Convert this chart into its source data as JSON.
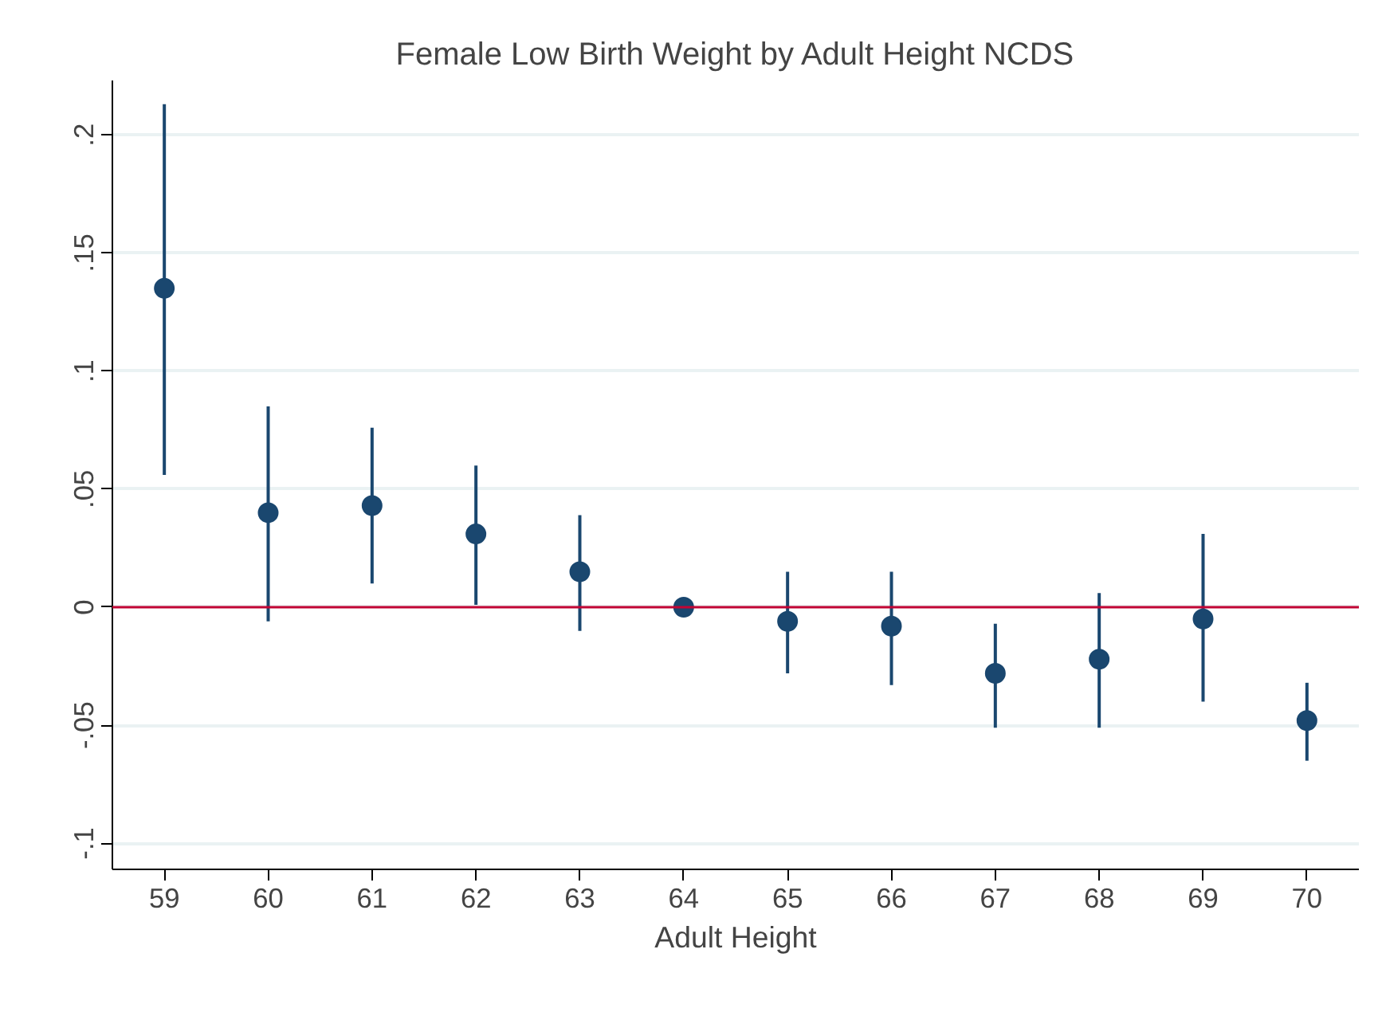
{
  "chart_data": {
    "type": "scatter",
    "title": "Female Low Birth Weight by Adult Height NCDS",
    "xlabel": "Adult Height",
    "x": [
      59,
      60,
      61,
      62,
      63,
      64,
      65,
      66,
      67,
      68,
      69,
      70
    ],
    "series": [
      {
        "color": "#1a476f",
        "values": [
          0.135,
          0.04,
          0.043,
          0.031,
          0.015,
          0,
          -0.006,
          -0.008,
          -0.028,
          -0.022,
          -0.005,
          -0.048
        ],
        "errors": [
          [
            0.056,
            0.213
          ],
          [
            -0.006,
            0.085
          ],
          [
            0.01,
            0.076
          ],
          [
            0.001,
            0.06
          ],
          [
            -0.01,
            0.039
          ],
          null,
          [
            -0.028,
            0.015
          ],
          [
            -0.033,
            0.015
          ],
          [
            -0.051,
            -0.007
          ],
          [
            -0.051,
            0.006
          ],
          [
            -0.04,
            0.031
          ],
          [
            -0.065,
            -0.032
          ]
        ]
      }
    ],
    "xlim": [
      58.5,
      70.5
    ],
    "ylim": [
      -0.111,
      0.223
    ],
    "xticks": [
      59,
      60,
      61,
      62,
      63,
      64,
      65,
      66,
      67,
      68,
      69,
      70
    ],
    "yticks": [
      {
        "value": -0.1,
        "label": "-.1"
      },
      {
        "value": -0.05,
        "label": "-.05"
      },
      {
        "value": 0,
        "label": "0"
      },
      {
        "value": 0.05,
        "label": ".05"
      },
      {
        "value": 0.1,
        "label": ".1"
      },
      {
        "value": 0.15,
        "label": ".15"
      },
      {
        "value": 0.2,
        "label": ".2"
      }
    ],
    "ref_lines": [
      {
        "axis": "y",
        "value": 0,
        "color": "#c10534"
      }
    ],
    "grid": "y",
    "marker": "circle"
  }
}
